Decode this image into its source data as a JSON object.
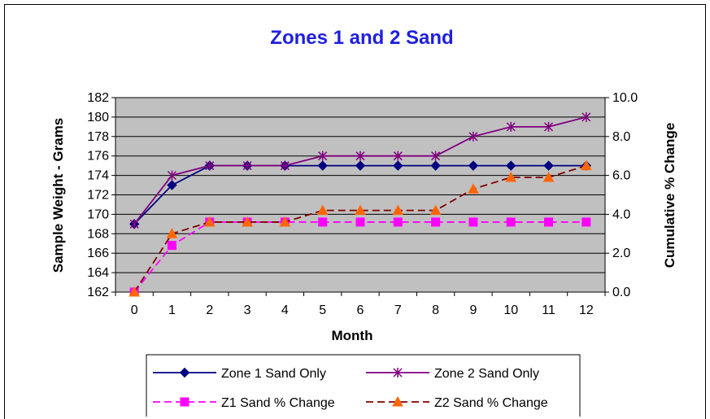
{
  "chart_data": {
    "type": "line",
    "title": "Zones 1 and 2 Sand",
    "xlabel": "Month",
    "ylabel": "Sample Weight - Grams",
    "y2label": "Cumulative % Change",
    "categories": [
      "0",
      "1",
      "2",
      "3",
      "4",
      "5",
      "6",
      "7",
      "8",
      "9",
      "10",
      "11",
      "12"
    ],
    "ylim": [
      162,
      182
    ],
    "y2lim": [
      0,
      10
    ],
    "yticks": [
      "162",
      "164",
      "166",
      "168",
      "170",
      "172",
      "174",
      "176",
      "178",
      "180",
      "182"
    ],
    "y2ticks": [
      "0.0",
      "2.0",
      "4.0",
      "6.0",
      "8.0",
      "10.0"
    ],
    "grid": true,
    "plot_background": "#c0c0c0",
    "legend_position": "bottom",
    "series": [
      {
        "name": "Zone 1 Sand Only",
        "axis": "left",
        "color": "#000080",
        "marker": "diamond",
        "dash": "solid",
        "values": [
          169,
          173,
          175,
          175,
          175,
          175,
          175,
          175,
          175,
          175,
          175,
          175,
          175
        ]
      },
      {
        "name": "Zone 2 Sand Only",
        "axis": "left",
        "color": "#800080",
        "marker": "asterisk",
        "dash": "solid",
        "values": [
          169,
          174,
          175,
          175,
          175,
          176,
          176,
          176,
          176,
          178,
          179,
          179,
          180
        ]
      },
      {
        "name": "Z1 Sand % Change",
        "axis": "right",
        "color": "#ff00ff",
        "marker": "square",
        "dash": "dashed",
        "values": [
          0.0,
          2.4,
          3.6,
          3.6,
          3.6,
          3.6,
          3.6,
          3.6,
          3.6,
          3.6,
          3.6,
          3.6,
          3.6
        ]
      },
      {
        "name": "Z2 Sand % Change",
        "axis": "right",
        "color": "#800000",
        "marker": "triangle",
        "marker_color": "#ff6600",
        "dash": "dashed",
        "values": [
          0.0,
          3.0,
          3.6,
          3.6,
          3.6,
          4.2,
          4.2,
          4.2,
          4.2,
          5.3,
          5.9,
          5.9,
          6.5
        ]
      }
    ]
  }
}
